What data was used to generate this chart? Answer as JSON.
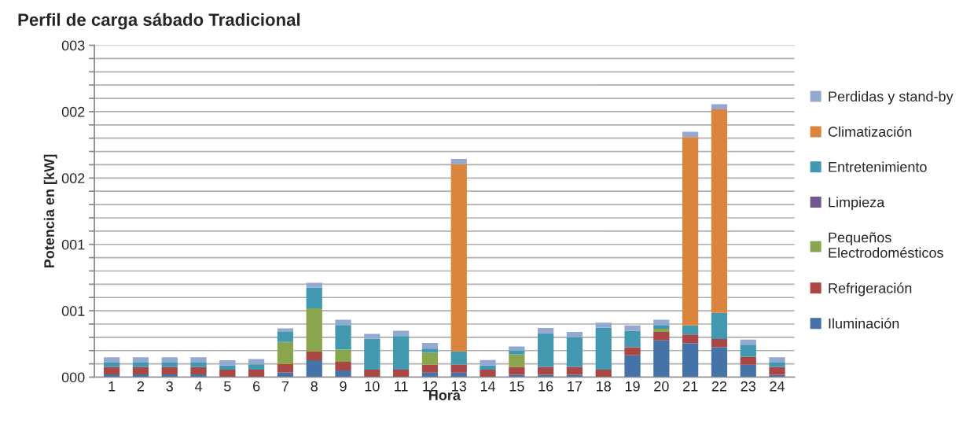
{
  "chart_data": {
    "type": "bar",
    "stacked": true,
    "title": "Perfil de carga sábado Tradicional",
    "xlabel": "Hora",
    "ylabel": "Potencia en [kW]",
    "categories": [
      "1",
      "2",
      "3",
      "4",
      "5",
      "6",
      "7",
      "8",
      "9",
      "10",
      "11",
      "12",
      "13",
      "14",
      "15",
      "16",
      "17",
      "18",
      "19",
      "20",
      "21",
      "22",
      "23",
      "24"
    ],
    "series": [
      {
        "name": "Iluminación",
        "color": "#4572a7",
        "values": [
          0.02,
          0.02,
          0.02,
          0.02,
          0,
          0,
          0.036,
          0.128,
          0.051,
          0,
          0,
          0.034,
          0.034,
          0,
          0.018,
          0.018,
          0.018,
          0,
          0.164,
          0.277,
          0.255,
          0.225,
          0.093,
          0.018
        ]
      },
      {
        "name": "Refrigeración",
        "color": "#aa4643",
        "values": [
          0.055,
          0.055,
          0.055,
          0.055,
          0.057,
          0.057,
          0.063,
          0.064,
          0.064,
          0.057,
          0.057,
          0.059,
          0.061,
          0.057,
          0.059,
          0.059,
          0.059,
          0.057,
          0.061,
          0.063,
          0.067,
          0.062,
          0.061,
          0.057
        ]
      },
      {
        "name": "Pequeños\nElectrodomésticos",
        "color": "#89a54e",
        "values": [
          0,
          0,
          0,
          0,
          0,
          0,
          0.166,
          0.326,
          0.093,
          0,
          0,
          0.091,
          0,
          0,
          0.095,
          0,
          0,
          0,
          0,
          0.024,
          0,
          0,
          0,
          0
        ]
      },
      {
        "name": "Limpieza",
        "color": "#71588f",
        "values": [
          0,
          0,
          0,
          0,
          0,
          0,
          0,
          0,
          0,
          0,
          0,
          0,
          0,
          0,
          0,
          0,
          0,
          0,
          0,
          0,
          0,
          0,
          0,
          0
        ]
      },
      {
        "name": "Entretenimiento",
        "color": "#4198af",
        "values": [
          0.035,
          0.035,
          0.035,
          0.035,
          0.03,
          0.04,
          0.075,
          0.156,
          0.185,
          0.232,
          0.253,
          0.031,
          0.099,
          0.032,
          0.028,
          0.253,
          0.223,
          0.315,
          0.123,
          0.029,
          0.067,
          0.197,
          0.091,
          0.034
        ]
      },
      {
        "name": "Climatización",
        "color": "#db843d",
        "values": [
          0,
          0,
          0,
          0,
          0,
          0,
          0,
          0,
          0,
          0,
          0,
          0,
          1.41,
          0,
          0,
          0,
          0,
          0,
          0,
          0,
          1.42,
          1.533,
          0,
          0
        ]
      },
      {
        "name": "Perdidas y stand-by",
        "color": "#93a9cf",
        "values": [
          0.04,
          0.04,
          0.04,
          0.04,
          0.04,
          0.04,
          0.028,
          0.037,
          0.04,
          0.037,
          0.04,
          0.042,
          0.04,
          0.04,
          0.031,
          0.04,
          0.04,
          0.039,
          0.041,
          0.04,
          0.039,
          0.039,
          0.038,
          0.041
        ]
      }
    ],
    "ylim": [
      0,
      2.5
    ],
    "yticks": [
      {
        "value": 0,
        "label": "000"
      },
      {
        "value": 0.1,
        "label": null
      },
      {
        "value": 0.2,
        "label": null
      },
      {
        "value": 0.3,
        "label": null
      },
      {
        "value": 0.4,
        "label": null
      },
      {
        "value": 0.5,
        "label": "001"
      },
      {
        "value": 0.6,
        "label": null
      },
      {
        "value": 0.7,
        "label": null
      },
      {
        "value": 0.8,
        "label": null
      },
      {
        "value": 0.9,
        "label": null
      },
      {
        "value": 1,
        "label": "001"
      },
      {
        "value": 1.1,
        "label": null
      },
      {
        "value": 1.2,
        "label": null
      },
      {
        "value": 1.3,
        "label": null
      },
      {
        "value": 1.4,
        "label": null
      },
      {
        "value": 1.5,
        "label": "002"
      },
      {
        "value": 1.6,
        "label": null
      },
      {
        "value": 1.7,
        "label": null
      },
      {
        "value": 1.8,
        "label": null
      },
      {
        "value": 1.9,
        "label": null
      },
      {
        "value": 2,
        "label": "002"
      },
      {
        "value": 2.1,
        "label": null
      },
      {
        "value": 2.2,
        "label": null
      },
      {
        "value": 2.3,
        "label": null
      },
      {
        "value": 2.4,
        "label": null
      },
      {
        "value": 2.5,
        "label": "003"
      }
    ],
    "grid": "y",
    "legend": "right"
  }
}
